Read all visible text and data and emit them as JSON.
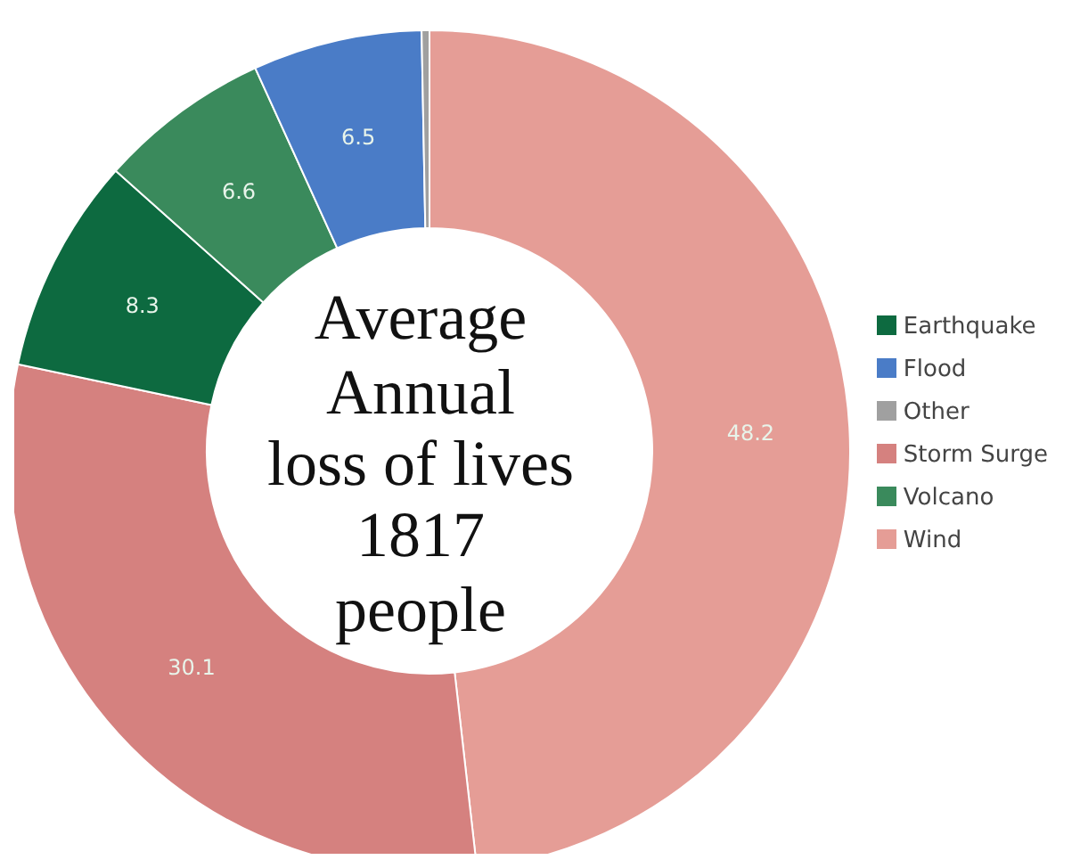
{
  "chart_data": {
    "type": "donut",
    "categories": [
      "Wind",
      "Storm Surge",
      "Earthquake",
      "Volcano",
      "Flood",
      "Other"
    ],
    "values": [
      48.2,
      30.1,
      8.3,
      6.6,
      6.5,
      0.3
    ],
    "colors": [
      "#e59d96",
      "#d5817f",
      "#0d6a40",
      "#3a8a5c",
      "#4a7cc7",
      "#a0a0a0"
    ],
    "value_labels": [
      "48.2",
      "30.1",
      "8.3",
      "6.6",
      "6.5",
      null
    ],
    "annotations": [
      "Average",
      "Annual",
      "loss of lives",
      "1817",
      "people"
    ],
    "legend": "right"
  }
}
